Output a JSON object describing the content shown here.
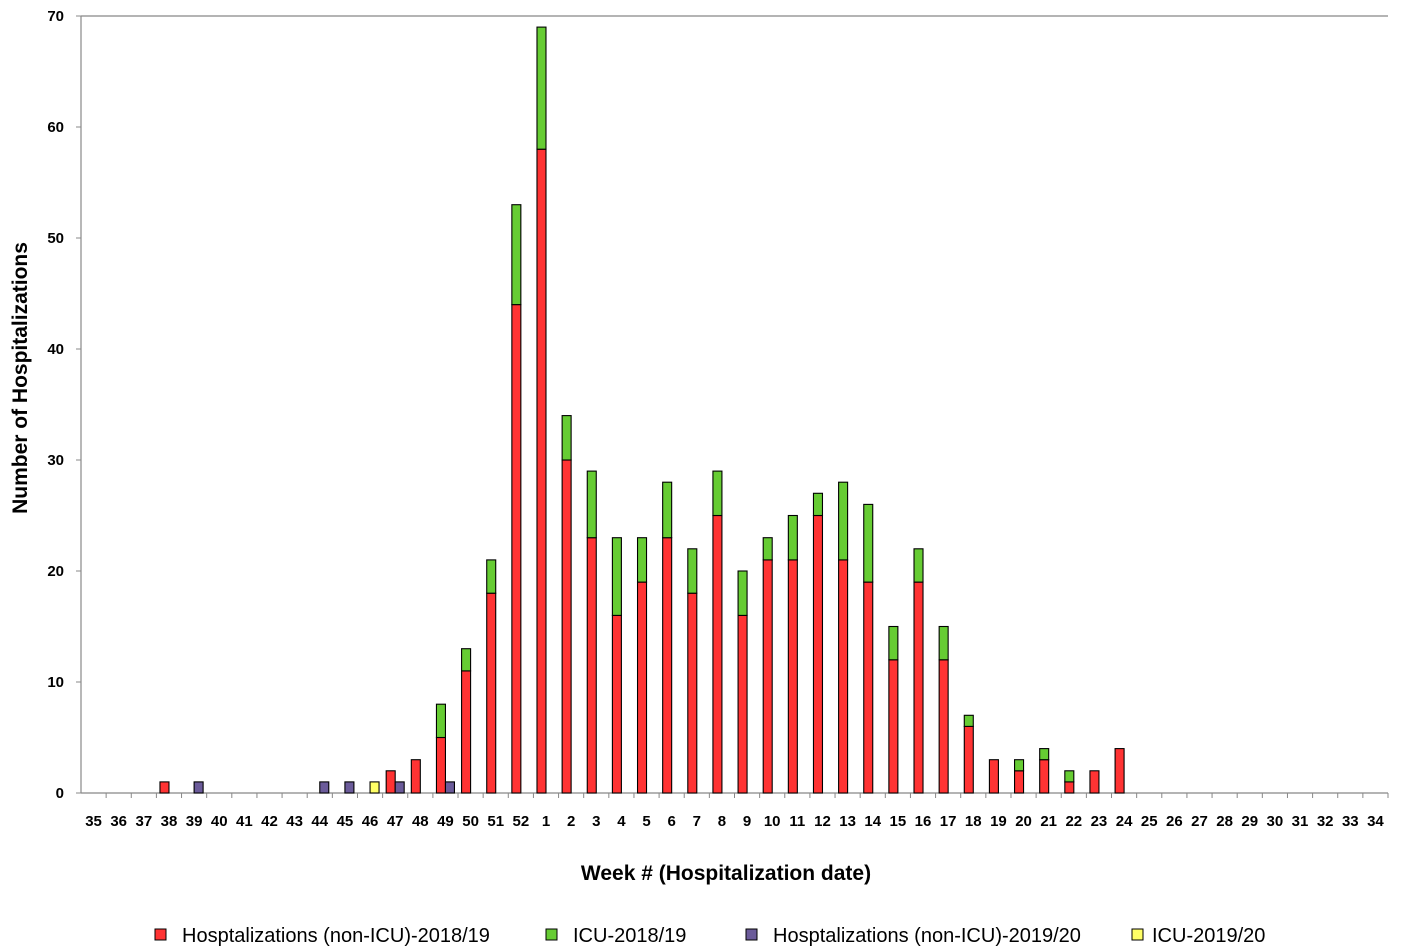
{
  "chart_data": {
    "type": "bar",
    "stacked": true,
    "title": "",
    "xlabel": "Week # (Hospitalization date)",
    "ylabel": "Number of Hospitalizations",
    "ylim": [
      0,
      70
    ],
    "yticks": [
      0,
      10,
      20,
      30,
      40,
      50,
      60,
      70
    ],
    "grid": false,
    "legend_position": "bottom",
    "categories": [
      "35",
      "36",
      "37",
      "38",
      "39",
      "40",
      "41",
      "42",
      "43",
      "44",
      "45",
      "46",
      "47",
      "48",
      "49",
      "50",
      "51",
      "52",
      "1",
      "2",
      "3",
      "4",
      "5",
      "6",
      "7",
      "8",
      "9",
      "10",
      "11",
      "12",
      "13",
      "14",
      "15",
      "16",
      "17",
      "18",
      "19",
      "20",
      "21",
      "22",
      "23",
      "24",
      "25",
      "26",
      "27",
      "28",
      "29",
      "30",
      "31",
      "32",
      "33",
      "34"
    ],
    "series": [
      {
        "name": "Hosptalizations (non-ICU)-2018/19",
        "group": "2018/19",
        "color": "#ff3333",
        "values": [
          0,
          0,
          0,
          1,
          0,
          0,
          0,
          0,
          0,
          0,
          0,
          0,
          2,
          3,
          5,
          11,
          18,
          44,
          58,
          30,
          23,
          16,
          19,
          23,
          18,
          25,
          16,
          21,
          21,
          25,
          21,
          19,
          12,
          19,
          12,
          6,
          3,
          2,
          3,
          1,
          2,
          4,
          0,
          0,
          0,
          0,
          0,
          0,
          0,
          0,
          0,
          0
        ]
      },
      {
        "name": "ICU-2018/19",
        "group": "2018/19",
        "color": "#66cc33",
        "values": [
          0,
          0,
          0,
          0,
          0,
          0,
          0,
          0,
          0,
          0,
          0,
          0,
          0,
          0,
          3,
          2,
          3,
          9,
          11,
          4,
          6,
          7,
          4,
          5,
          4,
          4,
          4,
          2,
          4,
          2,
          7,
          7,
          3,
          3,
          3,
          1,
          0,
          1,
          1,
          1,
          0,
          0,
          0,
          0,
          0,
          0,
          0,
          0,
          0,
          0,
          0,
          0
        ]
      },
      {
        "name": "Hosptalizations (non-ICU)-2019/20",
        "group": "2019/20",
        "color": "#6b5b9a",
        "values": [
          0,
          0,
          0,
          0,
          1,
          0,
          0,
          0,
          0,
          1,
          1,
          0,
          1,
          0,
          1,
          0,
          0,
          0,
          0,
          0,
          0,
          0,
          0,
          0,
          0,
          0,
          0,
          0,
          0,
          0,
          0,
          0,
          0,
          0,
          0,
          0,
          0,
          0,
          0,
          0,
          0,
          0,
          0,
          0,
          0,
          0,
          0,
          0,
          0,
          0,
          0,
          0
        ]
      },
      {
        "name": "ICU-2019/20",
        "group": "2019/20",
        "color": "#ffff66",
        "values": [
          0,
          0,
          0,
          0,
          0,
          0,
          0,
          0,
          0,
          0,
          0,
          1,
          0,
          0,
          0,
          0,
          0,
          0,
          0,
          0,
          0,
          0,
          0,
          0,
          0,
          0,
          0,
          0,
          0,
          0,
          0,
          0,
          0,
          0,
          0,
          0,
          0,
          0,
          0,
          0,
          0,
          0,
          0,
          0,
          0,
          0,
          0,
          0,
          0,
          0,
          0,
          0
        ]
      }
    ]
  }
}
